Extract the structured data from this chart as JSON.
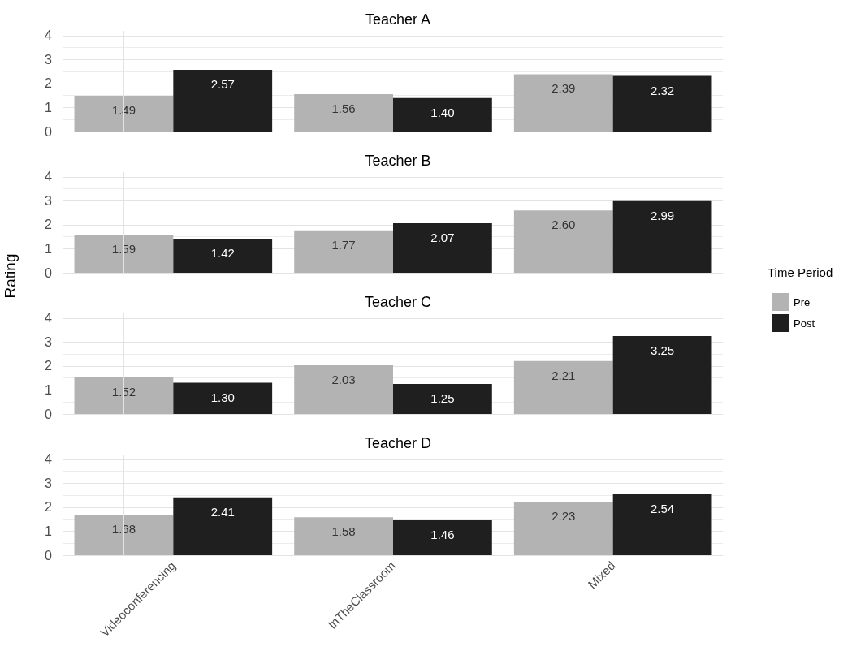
{
  "chart_data": [
    {
      "type": "bar",
      "title": "Teacher A",
      "categories": [
        null,
        null,
        null
      ],
      "series": [
        {
          "color": "#b3b3b3",
          "values": [
            1.49,
            1.56,
            2.39
          ],
          "value_labels": [
            "1.49",
            "1.56",
            "2.39"
          ]
        },
        {
          "color": "#1f1f1f",
          "values": [
            2.57,
            1.4,
            2.32
          ],
          "value_labels": [
            "2.57",
            "1.40",
            "2.32"
          ]
        }
      ],
      "ylim": [
        0,
        4.2
      ],
      "yticks": [
        0,
        1,
        2,
        3,
        4
      ],
      "grid": true
    },
    {
      "type": "bar",
      "title": "Teacher B",
      "categories": [
        null,
        null,
        null
      ],
      "series": [
        {
          "name": "Pre",
          "color": "#b3b3b3",
          "values": [
            1.59,
            1.77,
            2.6
          ],
          "value_labels": [
            "1.59",
            "1.77",
            "2.60"
          ]
        },
        {
          "name": "Post",
          "color": "#1f1f1f",
          "values": [
            1.42,
            2.07,
            2.99
          ],
          "value_labels": [
            "1.42",
            "2.07",
            "2.99"
          ]
        }
      ],
      "ylim": [
        0,
        4.2
      ],
      "yticks": [
        0,
        1,
        2,
        3,
        4
      ],
      "grid": true,
      "ylabel": "Rating",
      "legend": "right",
      "legend_title": "Time Period"
    },
    {
      "type": "bar",
      "title": "Teacher C",
      "categories": [
        null,
        null,
        null
      ],
      "series": [
        {
          "color": "#b3b3b3",
          "values": [
            1.52,
            2.03,
            2.21
          ],
          "value_labels": [
            "1.52",
            "2.03",
            "2.21"
          ]
        },
        {
          "color": "#1f1f1f",
          "values": [
            1.3,
            1.25,
            3.25
          ],
          "value_labels": [
            "1.30",
            "1.25",
            "3.25"
          ]
        }
      ],
      "ylim": [
        0,
        4.2
      ],
      "yticks": [
        0,
        1,
        2,
        3,
        4
      ],
      "grid": true
    },
    {
      "type": "bar",
      "title": "Teacher D",
      "categories": [
        "Videoconferencing",
        "InTheClassroom",
        "Mixed"
      ],
      "series": [
        {
          "color": "#b3b3b3",
          "values": [
            1.68,
            1.58,
            2.23
          ],
          "value_labels": [
            "1.68",
            "1.58",
            "2.23"
          ]
        },
        {
          "color": "#1f1f1f",
          "values": [
            2.41,
            1.46,
            2.54
          ],
          "value_labels": [
            "2.41",
            "1.46",
            "2.54"
          ]
        }
      ],
      "ylim": [
        0,
        4.2
      ],
      "yticks": [
        0,
        1,
        2,
        3,
        4
      ],
      "grid": true
    }
  ]
}
